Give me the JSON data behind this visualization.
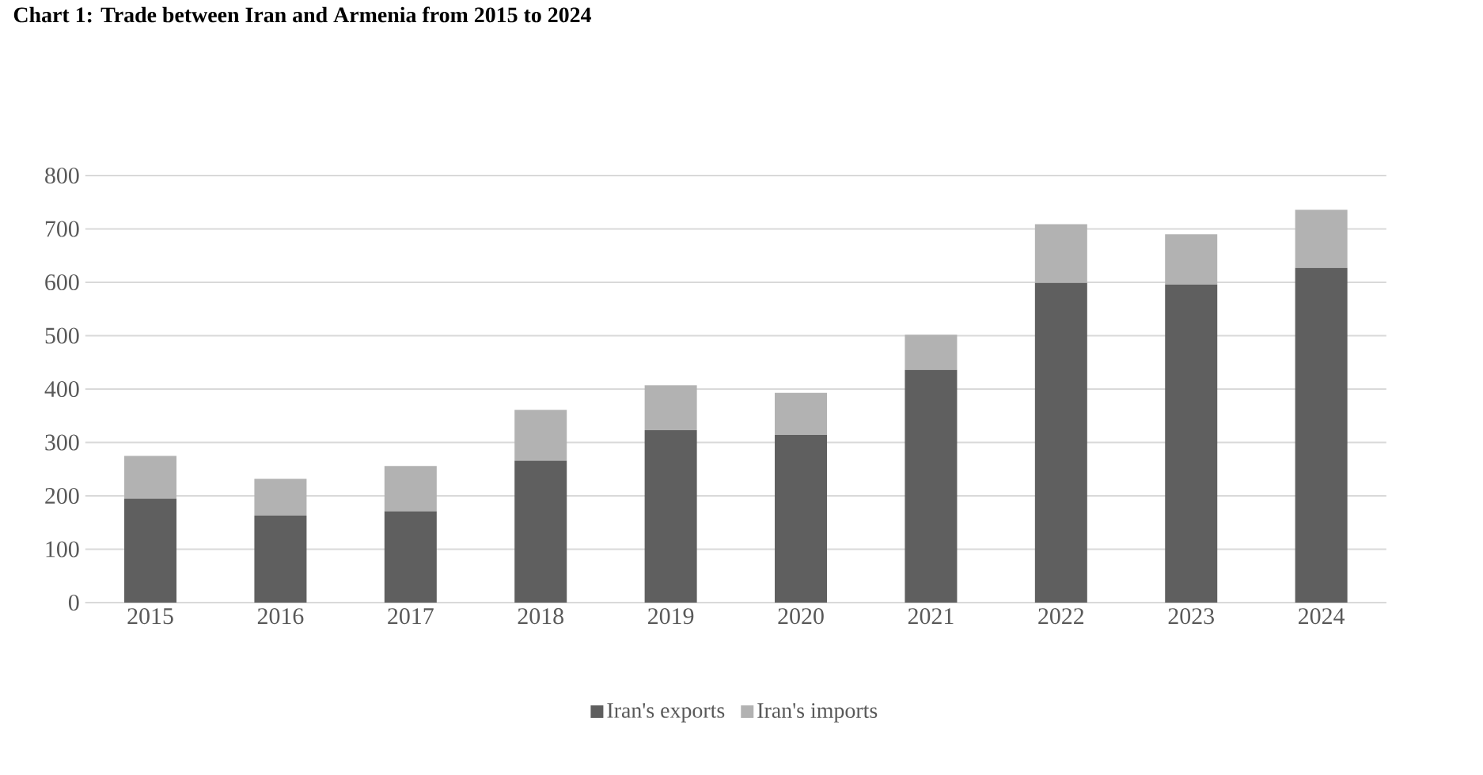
{
  "chart_data": {
    "type": "bar",
    "title": "Chart 1: Trade between Iran and Armenia from 2015 to 2024",
    "categories": [
      "2015",
      "2016",
      "2017",
      "2018",
      "2019",
      "2020",
      "2021",
      "2022",
      "2023",
      "2024"
    ],
    "stacked": true,
    "series": [
      {
        "name": "Iran's exports",
        "color": "#5f5f5f",
        "values": [
          195,
          163,
          171,
          266,
          323,
          314,
          436,
          599,
          596,
          627
        ]
      },
      {
        "name": "Iran's imports",
        "color": "#b2b2b2",
        "values": [
          80,
          69,
          85,
          95,
          84,
          79,
          66,
          110,
          94,
          109
        ]
      }
    ],
    "ylim": [
      0,
      800
    ],
    "yticks": [
      0,
      100,
      200,
      300,
      400,
      500,
      600,
      700,
      800
    ],
    "grid": "y",
    "legend": "bottom"
  }
}
